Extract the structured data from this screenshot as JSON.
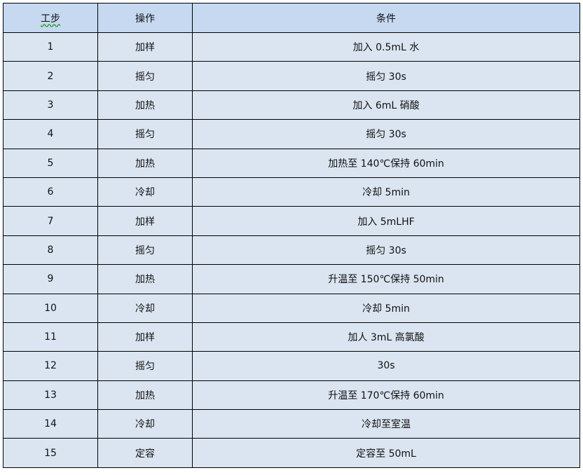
{
  "table": {
    "headers": [
      "工步",
      "操作",
      "条件"
    ],
    "rows": [
      [
        "1",
        "加样",
        "加入 0.5mL 水"
      ],
      [
        "2",
        "摇匀",
        "摇匀 30s"
      ],
      [
        "3",
        "加热",
        "加入 6mL 硝酸"
      ],
      [
        "4",
        "摇匀",
        "摇匀 30s"
      ],
      [
        "5",
        "加热",
        "加热至 140℃保持 60min"
      ],
      [
        "6",
        "冷却",
        "冷却 5min"
      ],
      [
        "7",
        "加样",
        "加入 5mLHF"
      ],
      [
        "8",
        "摇匀",
        "摇匀 30s"
      ],
      [
        "9",
        "加热",
        "升温至 150℃保持 50min"
      ],
      [
        "10",
        "冷却",
        "冷却 5min"
      ],
      [
        "11",
        "加样",
        "加人 3mL 高氯酸"
      ],
      [
        "12",
        "摇匀",
        "30s"
      ],
      [
        "13",
        "加热",
        "升温至 170℃保持 60min"
      ],
      [
        "14",
        "冷却",
        "冷却至室温"
      ],
      [
        "15",
        "定容",
        "定容至 50mL"
      ]
    ]
  },
  "colors": {
    "header_bg": "#c6d9f1",
    "row_bg": "#dbe5f1",
    "spellcheck_underline": "#2e9e2e"
  }
}
